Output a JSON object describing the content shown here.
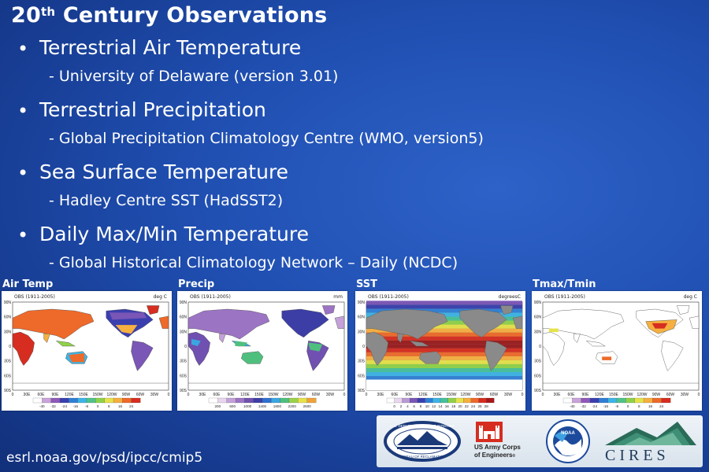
{
  "title": {
    "main": "20",
    "sup": "th",
    "rest": " Century Observations"
  },
  "items": [
    {
      "heading": "Terrestrial Air Temperature",
      "sub": "- University of Delaware (version 3.01)"
    },
    {
      "heading": "Terrestrial Precipitation",
      "sub": "- Global Precipitation Climatology Centre (WMO, version5)"
    },
    {
      "heading": "Sea Surface Temperature",
      "sub": "- Hadley Centre SST (HadSST2)"
    },
    {
      "heading": "Daily Max/Min Temperature",
      "sub": "- Global Historical Climatology Network – Daily (NCDC)"
    }
  ],
  "panels": [
    {
      "label": "Air Temp",
      "obs": "OBS (1911-2005)",
      "unit": "deg C",
      "lat_ticks": [
        "90N",
        "60N",
        "30N",
        "0",
        "30S",
        "60S",
        "90S"
      ],
      "lon_ticks": [
        "0",
        "30E",
        "60E",
        "90E",
        "120E",
        "150E",
        "150W",
        "120W",
        "90W",
        "60W",
        "30W",
        "0"
      ],
      "scale": [
        "-40",
        "-32",
        "-24",
        "-16",
        "-8",
        "0",
        "8",
        "16",
        "24"
      ]
    },
    {
      "label": "Precip",
      "obs": "OBS (1911-2005)",
      "unit": "mm",
      "lat_ticks": [
        "90N",
        "60N",
        "30N",
        "0",
        "30S",
        "60S",
        "90S"
      ],
      "lon_ticks": [
        "0",
        "30E",
        "60E",
        "90E",
        "120E",
        "150E",
        "150W",
        "120W",
        "90W",
        "60W",
        "30W",
        "0"
      ],
      "scale": [
        "200",
        "600",
        "1000",
        "1400",
        "1800",
        "2200",
        "2600"
      ]
    },
    {
      "label": "SST",
      "obs": "OBS (1911-2005)",
      "unit": "degreesC",
      "lat_ticks": [
        "90N",
        "60N",
        "30N",
        "0",
        "30S",
        "60S",
        "90S"
      ],
      "lon_ticks": [
        "0",
        "30E",
        "60E",
        "90E",
        "120E",
        "150E",
        "150W",
        "120W",
        "90W",
        "60W",
        "30W",
        "0"
      ],
      "scale": [
        "0",
        "2",
        "4",
        "6",
        "8",
        "10",
        "12",
        "14",
        "16",
        "18",
        "20",
        "22",
        "24",
        "26",
        "28"
      ]
    },
    {
      "label": "Tmax/Tmin",
      "obs": "OBS (1911-2005)",
      "unit": "deg C",
      "lat_ticks": [
        "90N",
        "60N",
        "30N",
        "0",
        "30S",
        "60S",
        "90S"
      ],
      "lon_ticks": [
        "0",
        "30E",
        "60E",
        "90E",
        "120E",
        "150E",
        "150W",
        "120W",
        "90W",
        "60W",
        "30W",
        "0"
      ],
      "scale": [
        "-40",
        "-32",
        "-24",
        "-16",
        "-8",
        "0",
        "8",
        "16",
        "24"
      ]
    }
  ],
  "footer": {
    "url": "esrl.noaa.gov/psd/ipcc/cmip5"
  },
  "logos": {
    "reclamation": {
      "top": "U.S. DEPARTMENT OF THE INTERIOR",
      "bottom": "BUREAU OF RECLAMATION"
    },
    "usace": {
      "line1": "US Army Corps",
      "line2": "of Engineers",
      "reg": "®"
    },
    "noaa": {
      "text": "NOAA"
    },
    "cires": {
      "text": "CIRES"
    }
  },
  "colors": {
    "background": "#1f4eb0",
    "ocean_land_grey": "#8a8a8a",
    "accent_red": "#d62d20"
  }
}
